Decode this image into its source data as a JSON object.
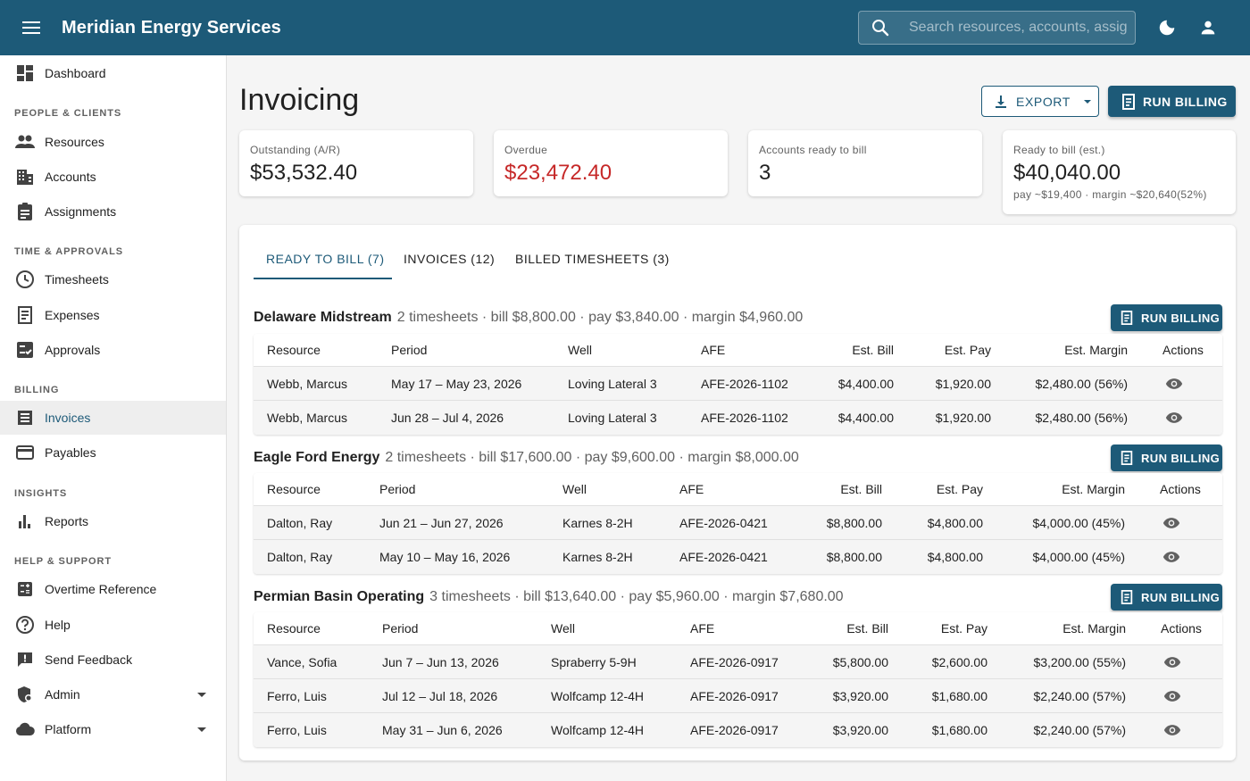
{
  "app": {
    "title": "Meridian Energy Services"
  },
  "search": {
    "placeholder": "Search resources, accounts, assignments"
  },
  "sidebar": {
    "dashboard": "Dashboard",
    "sections": {
      "people": "PEOPLE & CLIENTS",
      "time": "TIME & APPROVALS",
      "billing": "BILLING",
      "insights": "INSIGHTS",
      "help": "HELP & SUPPORT"
    },
    "items": {
      "resources": "Resources",
      "accounts": "Accounts",
      "assignments": "Assignments",
      "timesheets": "Timesheets",
      "expenses": "Expenses",
      "approvals": "Approvals",
      "invoices": "Invoices",
      "payables": "Payables",
      "reports": "Reports",
      "overtime": "Overtime Reference",
      "help": "Help",
      "feedback": "Send Feedback",
      "admin": "Admin",
      "platform": "Platform"
    }
  },
  "page": {
    "title": "Invoicing",
    "export_label": "EXPORT",
    "run_billing_label": "RUN BILLING"
  },
  "stats": {
    "outstanding": {
      "label": "Outstanding (A/R)",
      "value": "$53,532.40"
    },
    "overdue": {
      "label": "Overdue",
      "value": "$23,472.40"
    },
    "ready_accounts": {
      "label": "Accounts ready to bill",
      "value": "3"
    },
    "ready_est": {
      "label": "Ready to bill (est.)",
      "value": "$40,040.00",
      "sub": "pay ~$19,400 · margin ~$20,640(52%)"
    }
  },
  "tabs": {
    "ready": "READY TO BILL (7)",
    "invoices": "INVOICES (12)",
    "billed": "BILLED TIMESHEETS (3)"
  },
  "columns": {
    "resource": "Resource",
    "period": "Period",
    "well": "Well",
    "afe": "AFE",
    "bill": "Est. Bill",
    "pay": "Est. Pay",
    "margin": "Est. Margin",
    "actions": "Actions"
  },
  "groups": {
    "delaware": {
      "name": "Delaware Midstream",
      "summary": "2 timesheets · bill $8,800.00 · pay $3,840.00 · margin $4,960.00",
      "button": "RUN BILLING",
      "rows": [
        {
          "resource": "Webb, Marcus",
          "period": "May 17 – May 23, 2026",
          "well": "Loving Lateral 3",
          "afe": "AFE-2026-1102",
          "bill": "$4,400.00",
          "pay": "$1,920.00",
          "margin": "$2,480.00 (56%)"
        },
        {
          "resource": "Webb, Marcus",
          "period": "Jun 28 – Jul 4, 2026",
          "well": "Loving Lateral 3",
          "afe": "AFE-2026-1102",
          "bill": "$4,400.00",
          "pay": "$1,920.00",
          "margin": "$2,480.00 (56%)"
        }
      ]
    },
    "eagle": {
      "name": "Eagle Ford Energy",
      "summary": "2 timesheets · bill $17,600.00 · pay $9,600.00 · margin $8,000.00",
      "button": "RUN BILLING",
      "rows": [
        {
          "resource": "Dalton, Ray",
          "period": "Jun 21 – Jun 27, 2026",
          "well": "Karnes 8-2H",
          "afe": "AFE-2026-0421",
          "bill": "$8,800.00",
          "pay": "$4,800.00",
          "margin": "$4,000.00 (45%)"
        },
        {
          "resource": "Dalton, Ray",
          "period": "May 10 – May 16, 2026",
          "well": "Karnes 8-2H",
          "afe": "AFE-2026-0421",
          "bill": "$8,800.00",
          "pay": "$4,800.00",
          "margin": "$4,000.00 (45%)"
        }
      ]
    },
    "permian": {
      "name": "Permian Basin Operating",
      "summary": "3 timesheets · bill $13,640.00 · pay $5,960.00 · margin $7,680.00",
      "button": "RUN BILLING",
      "rows": [
        {
          "resource": "Vance, Sofia",
          "period": "Jun 7 – Jun 13, 2026",
          "well": "Spraberry 5-9H",
          "afe": "AFE-2026-0917",
          "bill": "$5,800.00",
          "pay": "$2,600.00",
          "margin": "$3,200.00 (55%)"
        },
        {
          "resource": "Ferro, Luis",
          "period": "Jul 12 – Jul 18, 2026",
          "well": "Wolfcamp 12-4H",
          "afe": "AFE-2026-0917",
          "bill": "$3,920.00",
          "pay": "$1,680.00",
          "margin": "$2,240.00 (57%)"
        },
        {
          "resource": "Ferro, Luis",
          "period": "May 31 – Jun 6, 2026",
          "well": "Wolfcamp 12-4H",
          "afe": "AFE-2026-0917",
          "bill": "$3,920.00",
          "pay": "$1,680.00",
          "margin": "$2,240.00 (57%)"
        }
      ]
    }
  },
  "colors": {
    "primary": "#1d5a78",
    "danger": "#c62828"
  }
}
